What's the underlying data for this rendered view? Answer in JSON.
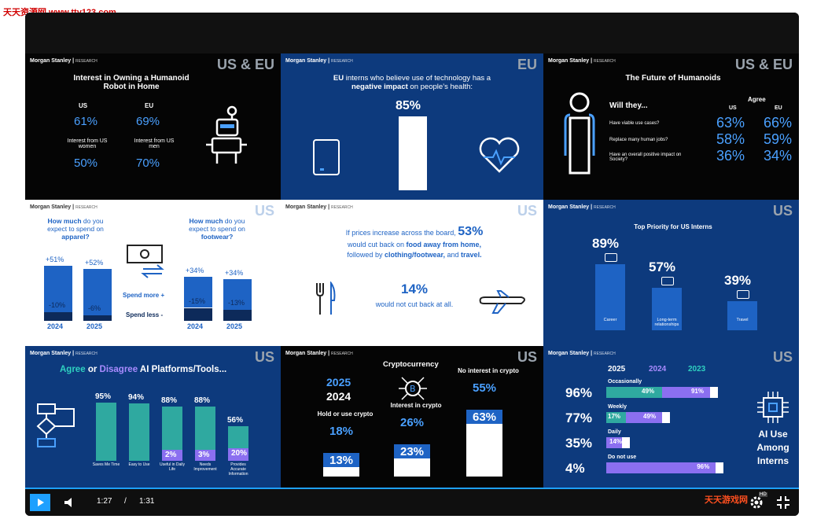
{
  "watermark": "天天资源网 www.tty123.com",
  "watermark_bottom": "天天游戏网",
  "common": {
    "brand": "Morgan Stanley",
    "research": "RESEARCH"
  },
  "p1": {
    "region": "US & EU",
    "title": "Interest in Owning a Humanoid Robot in Home",
    "us": "US",
    "eu": "EU",
    "us_val": "61%",
    "eu_val": "69%",
    "women": "Interest from US women",
    "men": "Interest from US men",
    "women_val": "50%",
    "men_val": "70%"
  },
  "p2": {
    "region": "EU",
    "title_a": "EU",
    "title_b": "interns who believe use of technology has a",
    "title_c": "negative impact",
    "title_d": "on people’s health:",
    "value": "85%"
  },
  "p3": {
    "region": "US & EU",
    "title": "The Future of Humanoids",
    "will": "Will they...",
    "agree": "Agree",
    "us": "US",
    "eu": "EU",
    "rows": [
      {
        "q": "Have viable use cases?",
        "us": "63%",
        "eu": "66%"
      },
      {
        "q": "Replace many human jobs?",
        "us": "58%",
        "eu": "59%"
      },
      {
        "q": "Have an overall positive impact on Society?",
        "us": "36%",
        "eu": "34%"
      }
    ]
  },
  "p4": {
    "region": "US",
    "left_h1": "How much",
    "left_h2": "do you expect to spend on",
    "left_h3": "apparel?",
    "right_h1": "How much",
    "right_h2": "do you expect to spend on",
    "right_h3": "footwear?",
    "more": "Spend more +",
    "less": "Spend less -",
    "apparel": [
      {
        "more": "+51%",
        "less": "-10%",
        "year": "2024"
      },
      {
        "more": "+52%",
        "less": "-6%",
        "year": "2025"
      }
    ],
    "footwear": [
      {
        "more": "+34%",
        "less": "-15%",
        "year": "2024"
      },
      {
        "more": "+34%",
        "less": "-13%",
        "year": "2025"
      }
    ]
  },
  "p5": {
    "region": "US",
    "l1": "If prices increase across the board,",
    "big": "53%",
    "l2a": "would cut back on",
    "l2b": "food away from home,",
    "l3a": "followed by",
    "l3b": "clothing/footwear,",
    "l3c": "and",
    "l3d": "travel.",
    "v2": "14%",
    "l4": "would not cut back at all."
  },
  "p6": {
    "region": "US",
    "title": "Top Priority for US Interns",
    "bars": [
      {
        "val": "89%",
        "label": "Career",
        "pct": 89
      },
      {
        "val": "57%",
        "label": "Long-term relationships",
        "pct": 57
      },
      {
        "val": "39%",
        "label": "Travel",
        "pct": 39
      }
    ]
  },
  "p7": {
    "region": "US",
    "title_a": "Agree",
    "title_b": "or",
    "title_c": "Disagree",
    "title_d": "AI Platforms/Tools...",
    "bars": [
      {
        "agree": "95%",
        "label": "Saves Me Time",
        "agree_pct": 95,
        "dis": ""
      },
      {
        "agree": "94%",
        "label": "Easy to Use",
        "agree_pct": 94,
        "dis": ""
      },
      {
        "agree": "88%",
        "label": "Useful in Daily Life",
        "agree_pct": 88,
        "dis": "2%"
      },
      {
        "agree": "88%",
        "label": "Needs Improvement",
        "agree_pct": 88,
        "dis": "3%"
      },
      {
        "agree": "56%",
        "label": "Provides Accurate Information",
        "agree_pct": 56,
        "dis": "20%"
      }
    ]
  },
  "p8": {
    "region": "US",
    "title": "Cryptocurrency",
    "y2025": "2025",
    "y2024": "2024",
    "groups": [
      {
        "label": "Hold or use crypto",
        "v25": "18%",
        "v24": "13%"
      },
      {
        "label": "Interest in crypto",
        "v25": "26%",
        "v24": "23%"
      },
      {
        "label": "No interest in crypto",
        "v25": "55%",
        "v24": "63%"
      }
    ]
  },
  "p9": {
    "region": "US",
    "y2025": "2025",
    "y2024": "2024",
    "y2023": "2023",
    "side1": "AI Use",
    "side2": "Among",
    "side3": "Interns",
    "rows": [
      {
        "big": "96%",
        "label": "Occasionally",
        "a": "49%",
        "b": "91%"
      },
      {
        "big": "77%",
        "label": "Weekly",
        "a": "17%",
        "b": "49%"
      },
      {
        "big": "35%",
        "label": "Daily",
        "a": "",
        "b": "14%"
      },
      {
        "big": "4%",
        "label": "Do not use",
        "a": "",
        "b": "96%"
      }
    ]
  },
  "controls": {
    "current": "1:27",
    "sep": "/",
    "total": "1:31",
    "hd": "HD"
  },
  "colors": {
    "teal": "#2fa9a0",
    "purple": "#8b6ff0",
    "blue": "#1e63c4",
    "lightblue": "#4aa0ff"
  }
}
